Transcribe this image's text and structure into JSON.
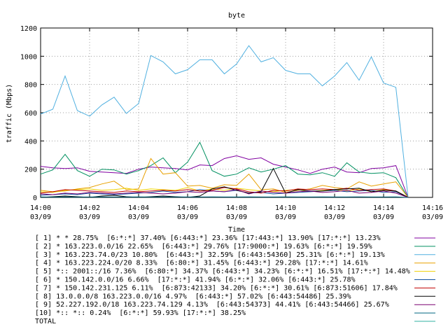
{
  "chart_data": {
    "type": "line",
    "title": "byte",
    "xlabel": "Time",
    "ylabel": "traffic (Mbps)",
    "ylim": [
      0,
      1200
    ],
    "yticks": [
      0,
      200,
      400,
      600,
      800,
      1000,
      1200
    ],
    "xlim": [
      "14:00",
      "14:16"
    ],
    "xticks": [
      {
        "time": "14:00",
        "date": "03/09"
      },
      {
        "time": "14:02",
        "date": "03/09"
      },
      {
        "time": "14:04",
        "date": "03/09"
      },
      {
        "time": "14:06",
        "date": "03/09"
      },
      {
        "time": "14:08",
        "date": "03/09"
      },
      {
        "time": "14:10",
        "date": "03/09"
      },
      {
        "time": "14:12",
        "date": "03/09"
      },
      {
        "time": "14:14",
        "date": "03/09"
      },
      {
        "time": "14:16",
        "date": "03/09"
      }
    ],
    "grid": true,
    "legend_position": "bottom",
    "x_minutes": [
      0,
      0.5,
      1,
      1.5,
      2,
      2.5,
      3,
      3.5,
      4,
      4.5,
      5,
      5.5,
      6,
      6.5,
      7,
      7.5,
      8,
      8.5,
      9,
      9.5,
      10,
      10.5,
      11,
      11.5,
      12,
      12.5,
      13,
      13.5,
      14,
      14.5,
      15
    ],
    "series": [
      {
        "label": "[ 1] * * 28.75%  [6:*:*] 37.40% [6:443:*] 23.36% [17:443:*] 13.90% [17:*:*] 13.23%",
        "color": "#8000a0",
        "values": [
          220,
          210,
          205,
          210,
          185,
          180,
          175,
          170,
          200,
          215,
          210,
          205,
          195,
          230,
          225,
          275,
          295,
          270,
          280,
          235,
          215,
          195,
          170,
          200,
          215,
          180,
          175,
          205,
          210,
          225,
          0
        ]
      },
      {
        "label": "[ 2] * 163.223.0.0/16 22.65%  [6:443:*] 29.76% [17:9000:*] 19.63% [6:*:*] 19.59%",
        "color": "#009060",
        "values": [
          165,
          195,
          305,
          190,
          150,
          200,
          195,
          165,
          190,
          225,
          280,
          175,
          250,
          390,
          190,
          150,
          165,
          210,
          180,
          200,
          225,
          165,
          160,
          175,
          150,
          245,
          180,
          170,
          175,
          140,
          0
        ]
      },
      {
        "label": "[ 3] * 163.223.74.0/23 10.80%  [6:443:*] 32.59% [6:443:54360] 25.31% [6:*:*] 19.13%",
        "color": "#50b0e0",
        "values": [
          590,
          625,
          860,
          615,
          575,
          655,
          710,
          595,
          665,
          1005,
          960,
          875,
          905,
          975,
          975,
          875,
          945,
          1075,
          960,
          990,
          900,
          875,
          875,
          790,
          860,
          955,
          830,
          995,
          810,
          780,
          0
        ]
      },
      {
        "label": "[ 4] * 163.223.224.0/20 8.33%  [6:80:*] 31.45% [6:443:*] 29.28% [17:*:*] 14.61%",
        "color": "#e8a000",
        "values": [
          50,
          40,
          45,
          60,
          70,
          95,
          115,
          55,
          60,
          275,
          165,
          175,
          80,
          85,
          65,
          90,
          85,
          165,
          55,
          60,
          35,
          50,
          60,
          85,
          70,
          60,
          110,
          80,
          95,
          110,
          0
        ]
      },
      {
        "label": "[ 5] *:: 2001::/16 7.36%  [6:80:*] 34.37% [6:443:*] 34.23% [6:*:*] 16.51% [17:*:*] 14.48%",
        "color": "#f0d000",
        "values": [
          40,
          35,
          50,
          55,
          60,
          50,
          55,
          65,
          50,
          60,
          55,
          50,
          70,
          45,
          60,
          50,
          65,
          55,
          45,
          40,
          50,
          55,
          40,
          50,
          55,
          45,
          60,
          40,
          55,
          45,
          0
        ]
      },
      {
        "label": "[ 6] * 150.142.0.0/16 6.66%  [17:*:*] 41.94% [6:*:*] 32.06% [6:443:*] 25.78%",
        "color": "#1050a0",
        "values": [
          15,
          20,
          25,
          20,
          30,
          25,
          20,
          25,
          30,
          35,
          45,
          35,
          40,
          55,
          45,
          40,
          50,
          30,
          35,
          25,
          30,
          35,
          40,
          45,
          50,
          40,
          45,
          50,
          35,
          40,
          0
        ]
      },
      {
        "label": "[ 7] * 150.142.231.125 6.11%  [6:873:42133] 34.20% [6:*:*] 30.61% [6:873:51606] 17.84%",
        "color": "#c00000",
        "values": [
          30,
          40,
          55,
          50,
          45,
          40,
          35,
          45,
          40,
          45,
          50,
          45,
          55,
          45,
          50,
          70,
          60,
          40,
          30,
          50,
          45,
          60,
          55,
          60,
          55,
          65,
          50,
          55,
          60,
          45,
          0
        ]
      },
      {
        "label": "[ 8] 13.0.0.0/8 163.223.0.0/16 4.97%  [6:443:*] 57.02% [6:443:54486] 25.39%",
        "color": "#000000",
        "values": [
          0,
          5,
          10,
          5,
          0,
          10,
          15,
          5,
          0,
          5,
          10,
          5,
          0,
          10,
          60,
          75,
          50,
          30,
          40,
          205,
          30,
          55,
          45,
          45,
          55,
          60,
          65,
          40,
          50,
          45,
          0
        ]
      },
      {
        "label": "[ 9] 52.227.192.0/18 163.223.74.129 4.13%  [6:443:54373] 44.41% [6:443:54466] 25.67%",
        "color": "#7a0070",
        "values": [
          25,
          20,
          30,
          25,
          35,
          30,
          25,
          30,
          35,
          30,
          25,
          30,
          40,
          35,
          45,
          40,
          55,
          25,
          45,
          35,
          30,
          40,
          45,
          35,
          40,
          50,
          30,
          35,
          45,
          30,
          0
        ]
      },
      {
        "label": "[10] *:: *:: 0.24%  [6:*:*] 59.93% [17:*:*] 38.25%",
        "color": "#006880",
        "values": [
          3,
          3,
          4,
          3,
          3,
          4,
          3,
          3,
          4,
          3,
          3,
          4,
          3,
          3,
          4,
          3,
          3,
          4,
          3,
          3,
          4,
          3,
          3,
          4,
          3,
          3,
          4,
          3,
          3,
          4,
          0
        ]
      },
      {
        "label": "TOTAL",
        "color": "#30b0a0",
        "values": []
      }
    ]
  }
}
